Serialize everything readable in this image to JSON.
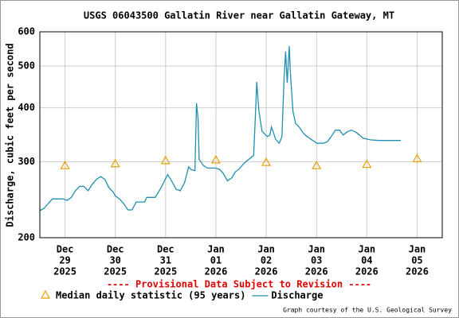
{
  "chart_data": {
    "type": "line",
    "title": "USGS 06043500 Gallatin River near Gallatin Gateway, MT",
    "ylabel": "Discharge, cubic feet per second",
    "annotation": "---- Provisional Data Subject to Revision ----",
    "credit": "Graph courtesy of the U.S. Geological Survey",
    "ylog": true,
    "grid": true,
    "ylim": [
      200,
      600
    ],
    "yticks": [
      200,
      300,
      400,
      500,
      600
    ],
    "xlim": [
      "2025-12-28 12:00",
      "2026-01-05 12:00"
    ],
    "xticks": [
      {
        "value": "2025-12-29",
        "label": [
          "Dec",
          "29",
          "2025"
        ]
      },
      {
        "value": "2025-12-30",
        "label": [
          "Dec",
          "30",
          "2025"
        ]
      },
      {
        "value": "2025-12-31",
        "label": [
          "Dec",
          "31",
          "2025"
        ]
      },
      {
        "value": "2026-01-01",
        "label": [
          "Jan",
          "01",
          "2026"
        ]
      },
      {
        "value": "2026-01-02",
        "label": [
          "Jan",
          "02",
          "2026"
        ]
      },
      {
        "value": "2026-01-03",
        "label": [
          "Jan",
          "03",
          "2026"
        ]
      },
      {
        "value": "2026-01-04",
        "label": [
          "Jan",
          "04",
          "2026"
        ]
      },
      {
        "value": "2026-01-05",
        "label": [
          "Jan",
          "05",
          "2026"
        ]
      }
    ],
    "series": [
      {
        "name": "Median daily statistic (95 years)",
        "marker": "triangle",
        "color": "#e8a000",
        "x": [
          "2025-12-29",
          "2025-12-30",
          "2025-12-31",
          "2026-01-01",
          "2026-01-02",
          "2026-01-03",
          "2026-01-04",
          "2026-01-05"
        ],
        "values": [
          294,
          297,
          302,
          303,
          299,
          294,
          296,
          305
        ]
      },
      {
        "name": "Discharge",
        "marker": "line",
        "color": "#1f8fb0",
        "x": [
          "2025-12-28 12:00",
          "2025-12-28 14:00",
          "2025-12-28 16:00",
          "2025-12-28 18:00",
          "2025-12-28 23:00",
          "2025-12-29 01:00",
          "2025-12-29 03:00",
          "2025-12-29 05:00",
          "2025-12-29 07:00",
          "2025-12-29 09:00",
          "2025-12-29 11:00",
          "2025-12-29 13:00",
          "2025-12-29 15:00",
          "2025-12-29 17:00",
          "2025-12-29 19:00",
          "2025-12-29 21:00",
          "2025-12-29 23:00",
          "2025-12-30 00:00",
          "2025-12-30 02:00",
          "2025-12-30 04:00",
          "2025-12-30 06:00",
          "2025-12-30 08:00",
          "2025-12-30 10:00",
          "2025-12-30 14:00",
          "2025-12-30 15:00",
          "2025-12-30 19:00",
          "2025-12-30 21:00",
          "2025-12-30 23:00",
          "2025-12-31 01:00",
          "2025-12-31 03:00",
          "2025-12-31 05:00",
          "2025-12-31 07:00",
          "2025-12-31 09:00",
          "2025-12-31 11:00",
          "2025-12-31 12:00",
          "2025-12-31 14:00",
          "2025-12-31 14:45",
          "2025-12-31 15:30",
          "2025-12-31 16:00",
          "2025-12-31 18:00",
          "2025-12-31 20:00",
          "2025-12-31 23:45",
          "2026-01-01 01:45",
          "2026-01-01 03:30",
          "2026-01-01 05:30",
          "2026-01-01 07:30",
          "2026-01-01 09:15",
          "2026-01-01 11:15",
          "2026-01-01 13:15",
          "2026-01-01 15:00",
          "2026-01-01 18:00",
          "2026-01-01 18:45",
          "2026-01-01 19:30",
          "2026-01-01 20:30",
          "2026-01-01 22:00",
          "2026-01-02 00:30",
          "2026-01-02 01:45",
          "2026-01-02 02:30",
          "2026-01-02 03:15",
          "2026-01-02 04:30",
          "2026-01-02 06:15",
          "2026-01-02 07:30",
          "2026-01-02 08:30",
          "2026-01-02 09:15",
          "2026-01-02 10:00",
          "2026-01-02 11:00",
          "2026-01-02 11:30",
          "2026-01-02 12:45",
          "2026-01-02 14:00",
          "2026-01-02 15:45",
          "2026-01-02 17:45",
          "2026-01-02 19:30",
          "2026-01-02 21:30",
          "2026-01-03 00:15",
          "2026-01-03 03:15",
          "2026-01-03 05:15",
          "2026-01-03 07:00",
          "2026-01-03 09:00",
          "2026-01-03 11:00",
          "2026-01-03 12:45",
          "2026-01-03 14:45",
          "2026-01-03 16:30",
          "2026-01-03 18:30",
          "2026-01-03 20:30",
          "2026-01-03 22:15",
          "2026-01-04 02:00",
          "2026-01-04 06:00",
          "2026-01-04 16:15"
        ],
        "values": [
          231,
          234,
          240,
          246,
          246,
          244,
          248,
          257,
          263,
          263,
          257,
          266,
          273,
          277,
          273,
          261,
          255,
          250,
          246,
          240,
          232,
          232,
          242,
          242,
          248,
          248,
          257,
          268,
          280,
          270,
          259,
          257,
          268,
          292,
          288,
          286,
          410,
          376,
          304,
          294,
          290,
          290,
          288,
          282,
          271,
          275,
          284,
          289,
          297,
          302,
          310,
          376,
          459,
          393,
          353,
          343,
          346,
          361,
          353,
          338,
          331,
          343,
          465,
          540,
          457,
          556,
          485,
          393,
          368,
          361,
          349,
          343,
          338,
          331,
          331,
          334,
          343,
          355,
          355,
          346,
          352,
          355,
          352,
          346,
          340,
          337,
          336,
          336
        ]
      }
    ]
  }
}
